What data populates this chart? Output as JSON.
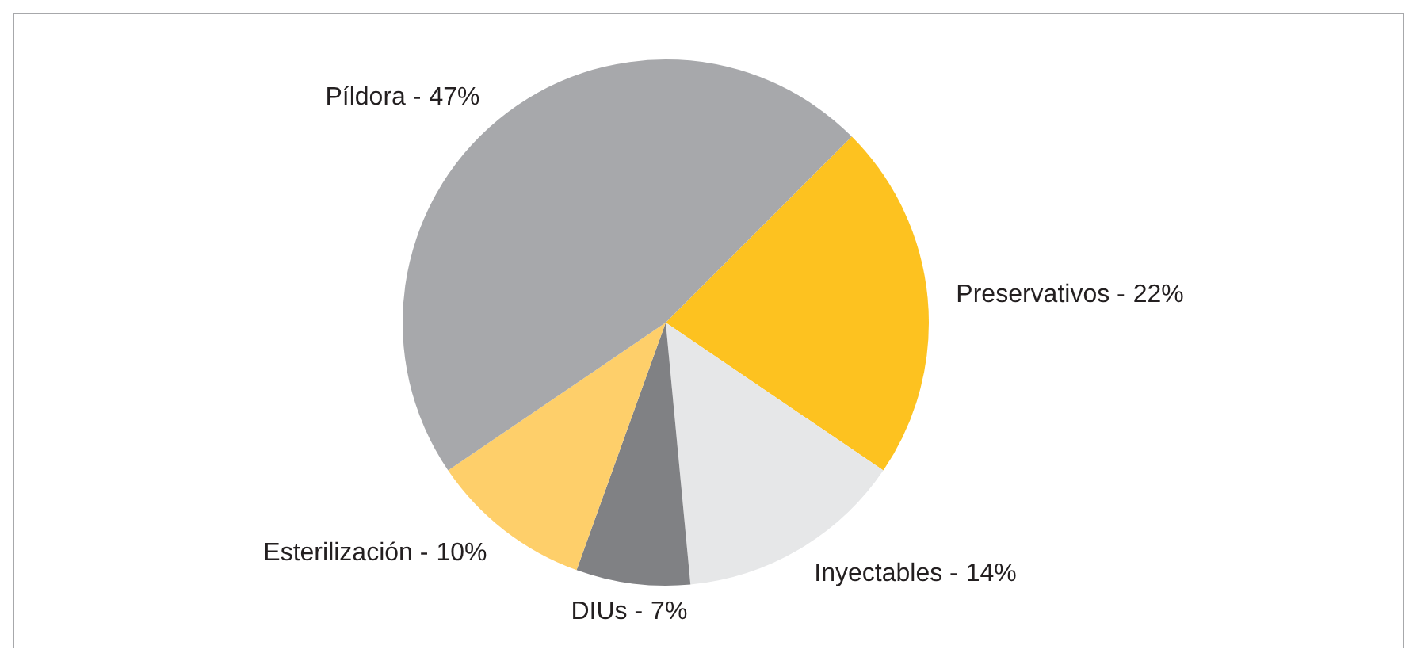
{
  "chart_data": {
    "type": "pie",
    "categories": [
      "Preservativos -",
      "Inyectables -",
      "DIUs -",
      "Esterilización -",
      "Píldora -"
    ],
    "values": [
      22,
      14,
      7,
      10,
      47
    ],
    "value_labels": [
      "22%",
      "14%",
      "7%",
      "10%",
      "47%"
    ],
    "colors": [
      "#fdc220",
      "#e6e7e8",
      "#808184",
      "#fecf6a",
      "#a7a8ab"
    ],
    "legend": false
  }
}
